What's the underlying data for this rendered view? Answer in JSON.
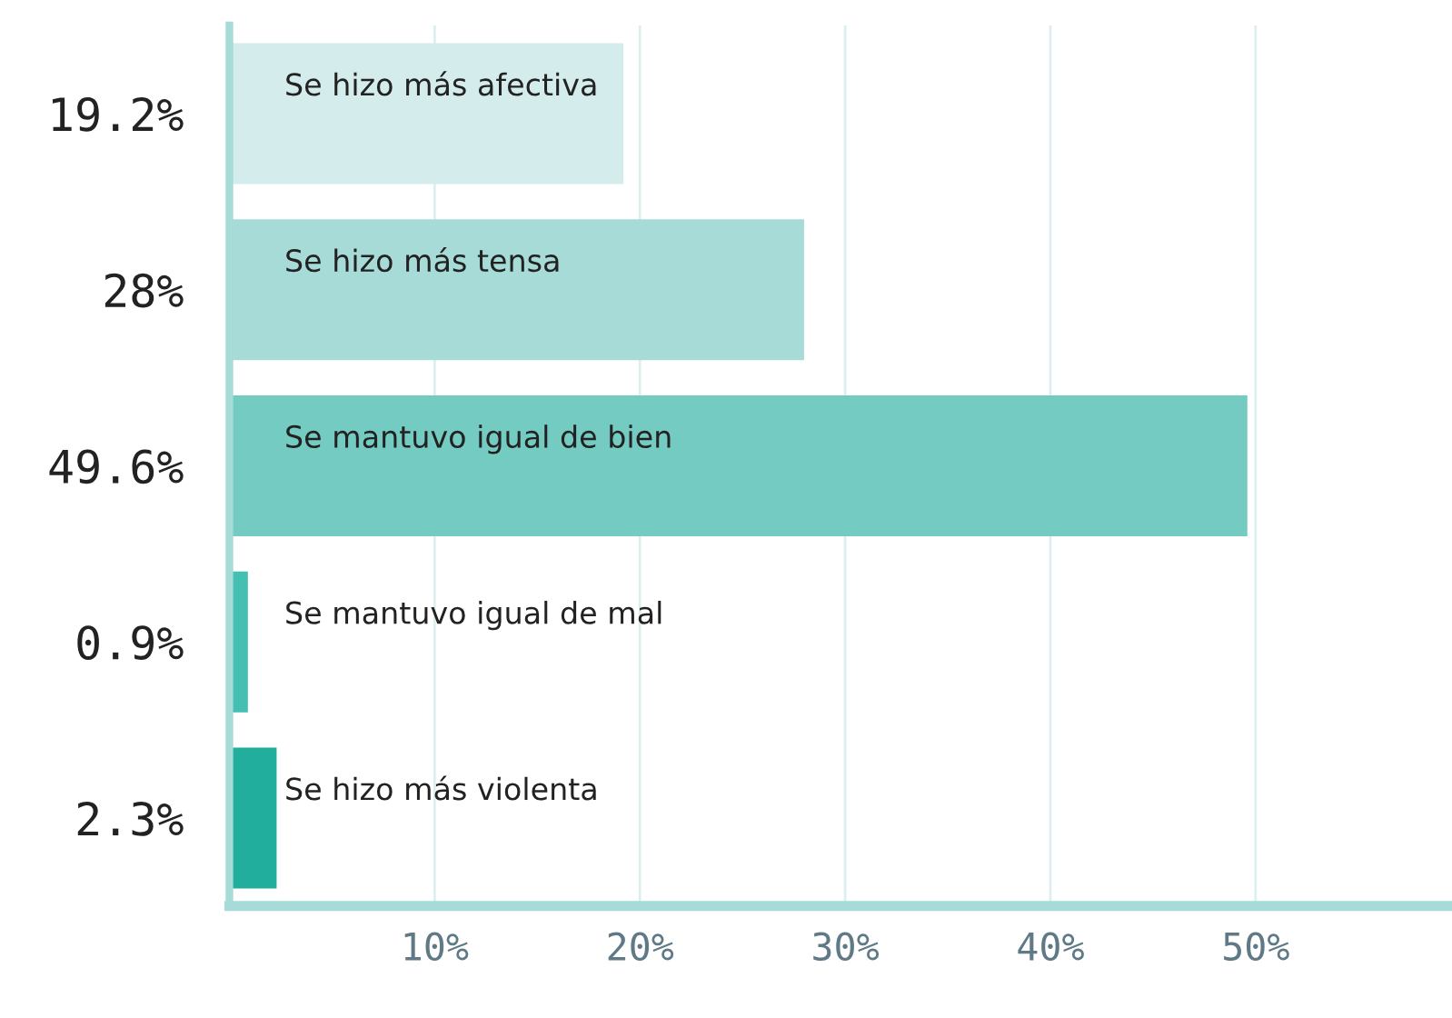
{
  "chart_data": {
    "type": "bar",
    "orientation": "horizontal",
    "categories": [
      "Se hizo más afectiva",
      "Se hizo más tensa",
      "Se mantuvo igual de bien",
      "Se mantuvo igual de mal",
      "Se hizo más violenta"
    ],
    "values": [
      19.2,
      28,
      49.6,
      0.9,
      2.3
    ],
    "colors": [
      "#d4ecec",
      "#a6dbd8",
      "#74cbc2",
      "#45bfb2",
      "#22ae9c"
    ],
    "value_labels": [
      "19.2%",
      "28%",
      "49.6%",
      "0.9%",
      "2.3%"
    ],
    "xlim": [
      0,
      59.5
    ],
    "xticks": [
      {
        "value": 10,
        "label": "10%"
      },
      {
        "value": 20,
        "label": "20%"
      },
      {
        "value": 30,
        "label": "30%"
      },
      {
        "value": 40,
        "label": "40%"
      },
      {
        "value": 50,
        "label": "50%"
      }
    ],
    "grid": "x"
  }
}
